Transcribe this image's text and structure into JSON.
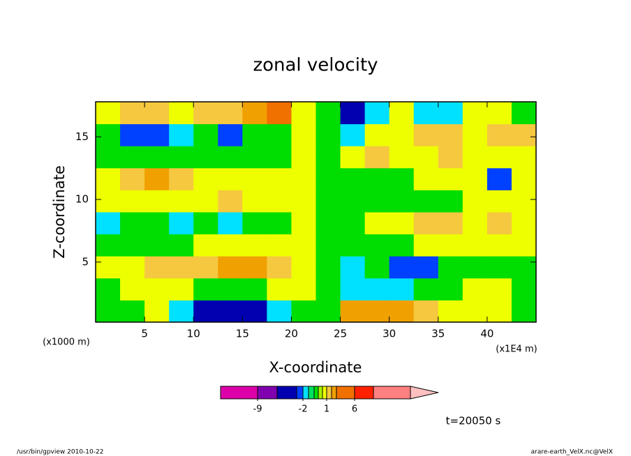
{
  "chart_data": {
    "type": "contour",
    "title": "zonal velocity",
    "x_label": "X-coordinate",
    "y_label": "Z-coordinate",
    "x_unit": "(x1E4 m)",
    "y_unit": "(x1000 m)",
    "time_label": "t=20050 s",
    "footer_left": "/usr/bin/gpview  2010-10-22",
    "footer_right": "arare-earth_VelX.nc@VelX",
    "xlim": [
      0,
      45
    ],
    "ylim": [
      0.2,
      17.8
    ],
    "xticks": [
      5,
      10,
      15,
      20,
      25,
      30,
      35,
      40
    ],
    "yticks": [
      5,
      10,
      15
    ],
    "x": [
      1.25,
      3.75,
      6.25,
      8.75,
      11.25,
      13.75,
      16.25,
      18.75,
      21.25,
      23.75,
      26.25,
      28.75,
      31.25,
      33.75,
      36.25,
      38.75,
      41.25,
      43.75
    ],
    "y": [
      1.08,
      2.84,
      4.6,
      6.36,
      8.12,
      9.88,
      11.64,
      13.4,
      15.16,
      16.92
    ],
    "z": [
      [
        -0.3,
        -0.3,
        0.7,
        -1.5,
        -4,
        -4,
        -4,
        -1.5,
        -0.3,
        -0.3,
        2.5,
        2.5,
        2.5,
        1.5,
        0.7,
        0.7,
        0.7,
        -0.3
      ],
      [
        -0.3,
        0.7,
        0.7,
        0.7,
        -0.3,
        -0.3,
        -0.3,
        0.7,
        0.7,
        -0.3,
        -1.5,
        -1.5,
        -1.5,
        -0.3,
        -0.3,
        0.7,
        0.7,
        -0.3
      ],
      [
        0.7,
        0.7,
        1.5,
        1.5,
        1.5,
        2.5,
        2.5,
        1.5,
        0.7,
        -0.3,
        -1.5,
        -0.3,
        -2.5,
        -2.5,
        -0.3,
        -0.3,
        -0.3,
        -0.3
      ],
      [
        -0.3,
        -0.3,
        -0.3,
        -0.3,
        0.7,
        0.7,
        0.7,
        0.7,
        0.7,
        -0.3,
        -0.3,
        -0.3,
        -0.3,
        0.7,
        0.7,
        0.7,
        0.7,
        0.7
      ],
      [
        -1.5,
        -0.3,
        -0.3,
        -1.5,
        -0.3,
        -1.5,
        -0.3,
        -0.3,
        0.7,
        -0.3,
        -0.3,
        0.7,
        0.7,
        1.5,
        1.5,
        0.7,
        1.5,
        0.7
      ],
      [
        0.7,
        0.7,
        0.7,
        0.7,
        0.7,
        1.5,
        0.7,
        0.7,
        0.7,
        -0.3,
        -0.3,
        -0.3,
        -0.3,
        -0.3,
        -0.3,
        0.7,
        0.7,
        0.7
      ],
      [
        0.7,
        1.5,
        2.5,
        1.5,
        0.7,
        0.7,
        0.7,
        0.7,
        0.7,
        -0.3,
        -0.3,
        -0.3,
        -0.3,
        0.7,
        0.7,
        0.7,
        -2.5,
        0.7
      ],
      [
        -0.3,
        -0.3,
        -0.3,
        -0.3,
        -0.3,
        -0.3,
        -0.3,
        -0.3,
        0.7,
        -0.3,
        0.7,
        1.5,
        0.7,
        0.7,
        1.5,
        0.7,
        0.7,
        0.7
      ],
      [
        -0.3,
        -2.5,
        -2.5,
        -1.5,
        -0.3,
        -2.5,
        -0.3,
        -0.3,
        0.7,
        -0.3,
        -1.5,
        0.7,
        0.7,
        1.5,
        1.5,
        0.7,
        1.5,
        1.5
      ],
      [
        0.7,
        1.5,
        1.5,
        0.7,
        1.5,
        1.5,
        2.5,
        3.5,
        0.7,
        -0.3,
        -4,
        -1.5,
        0.7,
        -1.5,
        -1.5,
        0.7,
        0.7,
        -0.3
      ]
    ],
    "levels": [
      -15,
      -9,
      -5,
      -3,
      -2,
      -1,
      -0.5,
      0,
      0.5,
      1,
      2,
      3,
      6,
      9,
      15
    ],
    "colors": [
      "#dd00aa",
      "#8000b0",
      "#0000b0",
      "#0040ff",
      "#00e0ff",
      "#00e060",
      "#00dd00",
      "#a8f000",
      "#eeff00",
      "#f5c840",
      "#f0a000",
      "#f07000",
      "#ff2000",
      "#ff8080",
      "#ffc0c0"
    ],
    "colorbar_ticks": [
      -9,
      -2,
      1,
      6
    ]
  }
}
